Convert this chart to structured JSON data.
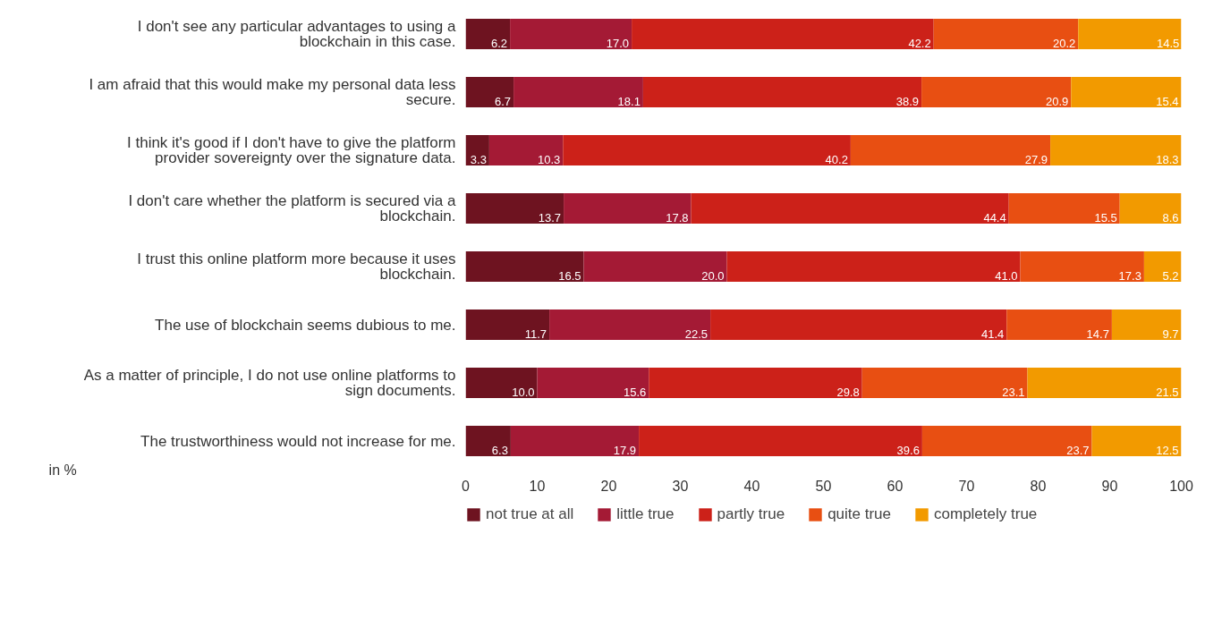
{
  "chart_data": {
    "type": "bar",
    "orientation": "horizontal",
    "stacked": true,
    "xlabel": "in %",
    "categories": [
      "I don't see any particular advantages to using a blockchain in this case.",
      "I am afraid that this would make my personal data less secure.",
      "I think it's good if I don't have to give the platform provider sovereignty over the signature data.",
      "I don't care whether the platform is secured via a blockchain.",
      "I trust this online platform more because it uses blockchain.",
      "The use of blockchain seems dubious to me.",
      "As a matter of principle, I do not use online platforms to sign documents.",
      "The trustworthiness would not increase for me."
    ],
    "series": [
      {
        "name": "not true at all",
        "color": "#6e1320",
        "values": [
          6.2,
          6.7,
          3.3,
          13.7,
          16.5,
          11.7,
          10.0,
          6.3
        ],
        "value_labels": [
          "6.2",
          "6.7",
          "3.3",
          "13.7",
          "16.5",
          "11.7",
          "10.0",
          "6.3"
        ]
      },
      {
        "name": "little true",
        "color": "#a41a35",
        "values": [
          17.0,
          18.1,
          10.3,
          17.8,
          20.0,
          22.5,
          15.6,
          17.9
        ],
        "value_labels": [
          "17.0",
          "18.1",
          "10.3",
          "17.8",
          "20.0",
          "22.5",
          "15.6",
          "17.9"
        ]
      },
      {
        "name": "partly true",
        "color": "#cc2119",
        "values": [
          42.2,
          38.9,
          40.2,
          44.4,
          41.0,
          41.4,
          29.8,
          39.6
        ],
        "value_labels": [
          "42.2",
          "38.9",
          "40.2",
          "44.4",
          "41.0",
          "41.4",
          "29.8",
          "39.6"
        ]
      },
      {
        "name": "quite true",
        "color": "#e84f12",
        "values": [
          20.2,
          20.9,
          27.9,
          15.5,
          17.3,
          14.7,
          23.1,
          23.7
        ],
        "value_labels": [
          "20.2",
          "20.9",
          "27.9",
          "15.5",
          "17.3",
          "14.7",
          "23.1",
          "23.7"
        ]
      },
      {
        "name": "completely true",
        "color": "#f29a00",
        "values": [
          14.5,
          15.4,
          18.3,
          8.6,
          5.2,
          9.7,
          21.5,
          12.5
        ],
        "value_labels": [
          "14.5",
          "15.4",
          "18.3",
          "8.6",
          "5.2",
          "9.7",
          "21.5",
          "12.5"
        ]
      }
    ],
    "xlim": [
      0,
      100
    ],
    "xticks": [
      0,
      10,
      20,
      30,
      40,
      50,
      60,
      70,
      80,
      90,
      100
    ],
    "grid": false,
    "legend": "bottom",
    "tick_labels": "x"
  }
}
